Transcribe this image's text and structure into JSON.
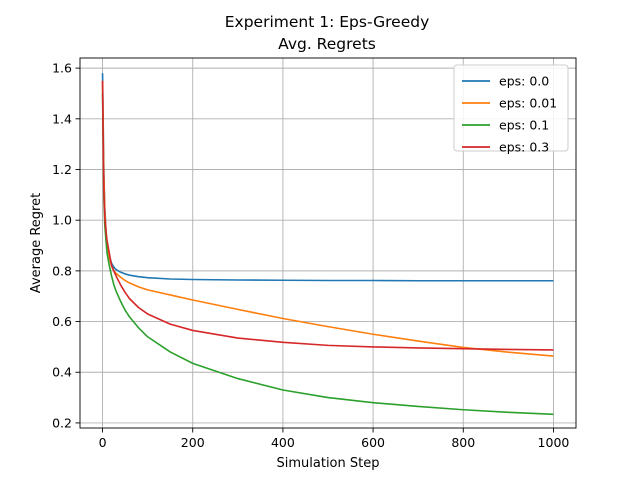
{
  "chart_data": {
    "type": "line",
    "title": "Experiment 1: Eps-Greedy",
    "subtitle": "Avg. Regrets",
    "xlabel": "Simulation Step",
    "ylabel": "Average Regret",
    "xlim": [
      -50,
      1050
    ],
    "ylim": [
      0.18,
      1.64
    ],
    "xticks": [
      0,
      200,
      400,
      600,
      800,
      1000
    ],
    "yticks": [
      0.2,
      0.4,
      0.6,
      0.8,
      1.0,
      1.2,
      1.4,
      1.6
    ],
    "grid": true,
    "legend_position": "top-right",
    "series": [
      {
        "name": "eps: 0.0",
        "color": "#1f77b4",
        "x": [
          0,
          1,
          2,
          3,
          5,
          8,
          10,
          15,
          20,
          25,
          30,
          40,
          50,
          60,
          80,
          100,
          150,
          200,
          300,
          400,
          500,
          600,
          700,
          800,
          900,
          1000
        ],
        "y": [
          1.58,
          1.45,
          1.3,
          1.18,
          1.05,
          0.95,
          0.9,
          0.86,
          0.83,
          0.815,
          0.805,
          0.795,
          0.788,
          0.783,
          0.777,
          0.773,
          0.768,
          0.766,
          0.764,
          0.763,
          0.762,
          0.762,
          0.761,
          0.761,
          0.761,
          0.761
        ]
      },
      {
        "name": "eps: 0.01",
        "color": "#ff7f0e",
        "x": [
          0,
          1,
          2,
          3,
          5,
          8,
          10,
          15,
          20,
          25,
          30,
          40,
          50,
          60,
          80,
          100,
          150,
          200,
          300,
          400,
          500,
          600,
          700,
          800,
          900,
          1000
        ],
        "y": [
          1.55,
          1.42,
          1.28,
          1.17,
          1.04,
          0.94,
          0.89,
          0.85,
          0.82,
          0.8,
          0.79,
          0.775,
          0.762,
          0.752,
          0.737,
          0.725,
          0.705,
          0.685,
          0.648,
          0.612,
          0.58,
          0.55,
          0.523,
          0.498,
          0.479,
          0.464
        ]
      },
      {
        "name": "eps: 0.1",
        "color": "#2ca02c",
        "x": [
          0,
          1,
          2,
          3,
          5,
          8,
          10,
          15,
          20,
          25,
          30,
          40,
          50,
          60,
          80,
          100,
          150,
          200,
          300,
          400,
          500,
          600,
          700,
          800,
          900,
          1000
        ],
        "y": [
          1.5,
          1.35,
          1.2,
          1.08,
          0.98,
          0.91,
          0.87,
          0.82,
          0.78,
          0.745,
          0.72,
          0.68,
          0.645,
          0.618,
          0.575,
          0.54,
          0.48,
          0.435,
          0.375,
          0.33,
          0.3,
          0.28,
          0.265,
          0.252,
          0.242,
          0.234
        ]
      },
      {
        "name": "eps: 0.3",
        "color": "#d62728",
        "x": [
          0,
          1,
          2,
          3,
          5,
          8,
          10,
          15,
          20,
          25,
          30,
          40,
          50,
          60,
          80,
          100,
          150,
          200,
          300,
          400,
          500,
          600,
          700,
          800,
          900,
          1000
        ],
        "y": [
          1.55,
          1.38,
          1.22,
          1.11,
          1.01,
          0.95,
          0.92,
          0.87,
          0.82,
          0.8,
          0.78,
          0.745,
          0.715,
          0.69,
          0.655,
          0.63,
          0.59,
          0.565,
          0.535,
          0.518,
          0.506,
          0.5,
          0.496,
          0.493,
          0.49,
          0.488
        ]
      }
    ]
  }
}
